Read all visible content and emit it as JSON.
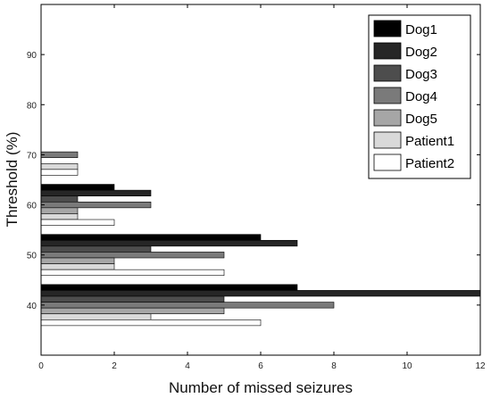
{
  "chart_data": {
    "type": "bar",
    "orientation": "horizontal",
    "xlabel": "Number of missed seizures",
    "ylabel": "Threshold (%)",
    "xlim": [
      0,
      12
    ],
    "ylim": [
      30,
      100
    ],
    "xticks": [
      0,
      2,
      4,
      6,
      8,
      10,
      12
    ],
    "yticks": [
      40,
      50,
      60,
      70,
      80,
      90
    ],
    "categories": [
      40,
      50,
      60,
      70
    ],
    "legend_position": "top-right",
    "grid": false,
    "series": [
      {
        "name": "Dog1",
        "color": "#000000",
        "values": [
          7,
          6,
          2,
          0
        ]
      },
      {
        "name": "Dog2",
        "color": "#262626",
        "values": [
          12,
          7,
          3,
          0
        ]
      },
      {
        "name": "Dog3",
        "color": "#4d4d4d",
        "values": [
          5,
          3,
          1,
          0
        ]
      },
      {
        "name": "Dog4",
        "color": "#7a7a7a",
        "values": [
          8,
          5,
          3,
          1
        ]
      },
      {
        "name": "Dog5",
        "color": "#a6a6a6",
        "values": [
          5,
          2,
          1,
          0
        ]
      },
      {
        "name": "Patient1",
        "color": "#d9d9d9",
        "values": [
          3,
          2,
          1,
          1
        ]
      },
      {
        "name": "Patient2",
        "color": "#ffffff",
        "values": [
          6,
          5,
          2,
          1
        ]
      }
    ]
  }
}
